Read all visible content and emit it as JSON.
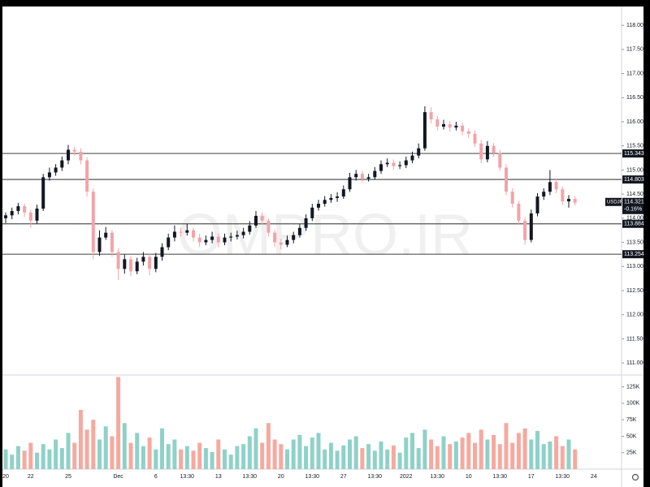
{
  "chart_data": {
    "type": "candlestick",
    "symbol": "USDJPY",
    "watermark": "OMPRO.IR",
    "last_price": 114.321,
    "change": {
      "value": -0.16,
      "label": "-0.16%"
    },
    "up_color": "#131722",
    "down_color": "#f4a3a8",
    "volume_up_color": "#8fd1c8",
    "volume_down_color": "#f6a99f",
    "categories": [
      "20",
      null,
      null,
      null,
      "22",
      null,
      null,
      null,
      null,
      null,
      "25",
      null,
      null,
      null,
      null,
      null,
      null,
      null,
      "Dec",
      null,
      null,
      null,
      null,
      null,
      "6",
      null,
      null,
      null,
      null,
      "13:30",
      null,
      null,
      null,
      null,
      "13",
      null,
      null,
      null,
      null,
      "13:30",
      null,
      null,
      null,
      null,
      "20",
      null,
      null,
      null,
      null,
      "13:30",
      null,
      null,
      null,
      null,
      "27",
      null,
      null,
      null,
      null,
      "13:30",
      null,
      null,
      null,
      null,
      "2022",
      null,
      null,
      null,
      null,
      "13:30",
      null,
      null,
      null,
      null,
      "10",
      null,
      null,
      null,
      null,
      "13:30",
      null,
      null,
      null,
      null,
      "17",
      null,
      null,
      null,
      null,
      "13:30",
      null,
      null,
      null,
      null,
      "24"
    ],
    "ohlc": [
      [
        114.0,
        114.12,
        113.9,
        114.06
      ],
      [
        114.06,
        114.22,
        113.98,
        114.15
      ],
      [
        114.15,
        114.32,
        114.08,
        114.25
      ],
      [
        114.25,
        114.3,
        114.02,
        114.12
      ],
      [
        114.12,
        114.18,
        113.8,
        113.95
      ],
      [
        113.95,
        114.28,
        113.88,
        114.2
      ],
      [
        114.2,
        114.92,
        114.15,
        114.85
      ],
      [
        114.85,
        115.05,
        114.78,
        114.95
      ],
      [
        114.95,
        115.12,
        114.88,
        115.05
      ],
      [
        115.05,
        115.28,
        114.98,
        115.2
      ],
      [
        115.2,
        115.52,
        115.12,
        115.42
      ],
      [
        115.42,
        115.48,
        115.3,
        115.38
      ],
      [
        115.38,
        115.45,
        115.12,
        115.2
      ],
      [
        115.2,
        115.26,
        114.45,
        114.55
      ],
      [
        114.55,
        114.62,
        113.15,
        113.3
      ],
      [
        113.3,
        113.75,
        113.22,
        113.6
      ],
      [
        113.6,
        113.82,
        113.55,
        113.7
      ],
      [
        113.7,
        113.76,
        113.2,
        113.3
      ],
      [
        113.3,
        113.38,
        112.72,
        112.95
      ],
      [
        112.95,
        113.25,
        112.85,
        113.15
      ],
      [
        113.15,
        113.22,
        112.8,
        112.9
      ],
      [
        112.9,
        113.18,
        112.84,
        113.1
      ],
      [
        113.1,
        113.3,
        113.02,
        113.2
      ],
      [
        113.2,
        113.26,
        112.82,
        112.95
      ],
      [
        112.95,
        113.28,
        112.88,
        113.2
      ],
      [
        113.2,
        113.48,
        113.12,
        113.4
      ],
      [
        113.4,
        113.68,
        113.34,
        113.6
      ],
      [
        113.6,
        113.85,
        113.52,
        113.72
      ],
      [
        113.72,
        113.8,
        113.62,
        113.7
      ],
      [
        113.7,
        113.88,
        113.64,
        113.75
      ],
      [
        113.75,
        113.8,
        113.52,
        113.6
      ],
      [
        113.6,
        113.68,
        113.4,
        113.5
      ],
      [
        113.5,
        113.64,
        113.44,
        113.55
      ],
      [
        113.55,
        113.72,
        113.48,
        113.62
      ],
      [
        113.62,
        113.68,
        113.4,
        113.5
      ],
      [
        113.5,
        113.68,
        113.44,
        113.6
      ],
      [
        113.6,
        113.7,
        113.52,
        113.62
      ],
      [
        113.62,
        113.74,
        113.56,
        113.65
      ],
      [
        113.65,
        113.8,
        113.58,
        113.72
      ],
      [
        113.72,
        113.94,
        113.66,
        113.85
      ],
      [
        113.85,
        114.15,
        113.8,
        114.05
      ],
      [
        114.05,
        114.12,
        113.88,
        113.95
      ],
      [
        113.95,
        114.0,
        113.62,
        113.7
      ],
      [
        113.7,
        113.76,
        113.4,
        113.5
      ],
      [
        113.5,
        113.58,
        113.36,
        113.45
      ],
      [
        113.45,
        113.64,
        113.4,
        113.55
      ],
      [
        113.55,
        113.72,
        113.48,
        113.65
      ],
      [
        113.65,
        113.88,
        113.6,
        113.8
      ],
      [
        113.8,
        114.08,
        113.74,
        114.0
      ],
      [
        114.0,
        114.3,
        113.94,
        114.22
      ],
      [
        114.22,
        114.38,
        114.16,
        114.3
      ],
      [
        114.3,
        114.46,
        114.24,
        114.38
      ],
      [
        114.38,
        114.5,
        114.32,
        114.42
      ],
      [
        114.42,
        114.54,
        114.34,
        114.45
      ],
      [
        114.45,
        114.68,
        114.4,
        114.6
      ],
      [
        114.6,
        114.94,
        114.55,
        114.85
      ],
      [
        114.85,
        115.0,
        114.78,
        114.92
      ],
      [
        114.92,
        114.98,
        114.74,
        114.82
      ],
      [
        114.82,
        114.92,
        114.76,
        114.85
      ],
      [
        114.85,
        115.06,
        114.8,
        114.98
      ],
      [
        114.98,
        115.2,
        114.92,
        115.12
      ],
      [
        115.12,
        115.24,
        115.06,
        115.15
      ],
      [
        115.15,
        115.22,
        115.0,
        115.08
      ],
      [
        115.08,
        115.18,
        115.02,
        115.1
      ],
      [
        115.1,
        115.28,
        115.04,
        115.2
      ],
      [
        115.2,
        115.38,
        115.14,
        115.3
      ],
      [
        115.3,
        115.55,
        115.24,
        115.45
      ],
      [
        115.45,
        116.32,
        115.4,
        116.2
      ],
      [
        116.2,
        116.3,
        115.96,
        116.05
      ],
      [
        116.05,
        116.12,
        115.82,
        115.9
      ],
      [
        115.9,
        116.04,
        115.84,
        115.95
      ],
      [
        115.95,
        116.02,
        115.8,
        115.88
      ],
      [
        115.88,
        116.0,
        115.82,
        115.92
      ],
      [
        115.92,
        115.98,
        115.72,
        115.8
      ],
      [
        115.8,
        115.86,
        115.66,
        115.75
      ],
      [
        115.75,
        115.82,
        115.48,
        115.55
      ],
      [
        115.55,
        115.62,
        115.14,
        115.22
      ],
      [
        115.22,
        115.6,
        115.16,
        115.5
      ],
      [
        115.5,
        115.56,
        115.28,
        115.35
      ],
      [
        115.35,
        115.42,
        114.98,
        115.05
      ],
      [
        115.05,
        115.12,
        114.48,
        114.55
      ],
      [
        114.55,
        114.62,
        114.22,
        114.3
      ],
      [
        114.3,
        114.36,
        113.86,
        113.95
      ],
      [
        113.95,
        114.02,
        113.45,
        113.55
      ],
      [
        113.55,
        114.18,
        113.5,
        114.1
      ],
      [
        114.1,
        114.52,
        114.04,
        114.45
      ],
      [
        114.45,
        114.62,
        114.38,
        114.55
      ],
      [
        114.55,
        115.0,
        114.48,
        114.75
      ],
      [
        114.75,
        114.82,
        114.52,
        114.6
      ],
      [
        114.6,
        114.66,
        114.28,
        114.35
      ],
      [
        114.35,
        114.48,
        114.22,
        114.4
      ],
      [
        114.4,
        114.46,
        114.26,
        114.321
      ],
      null,
      null,
      null
    ],
    "ylim": [
      110.75,
      118.39
    ],
    "yticks": [
      {
        "value": 111,
        "label": "111.000"
      },
      {
        "value": 111.5,
        "label": "111.500"
      },
      {
        "value": 112,
        "label": "112.000"
      },
      {
        "value": 112.5,
        "label": "112.500"
      },
      {
        "value": 113,
        "label": "113.000"
      },
      {
        "value": 113.5,
        "label": "113.500"
      },
      {
        "value": 114,
        "label": "114.000"
      },
      {
        "value": 114.5,
        "label": "114.500"
      },
      {
        "value": 115,
        "label": "115.000"
      },
      {
        "value": 115.5,
        "label": "115.500"
      },
      {
        "value": 116,
        "label": "116.000"
      },
      {
        "value": 116.5,
        "label": "116.500"
      },
      {
        "value": 117,
        "label": "117.000"
      },
      {
        "value": 117.5,
        "label": "117.500"
      },
      {
        "value": 118,
        "label": "118.000"
      }
    ],
    "levels": [
      115.343,
      114.803,
      113.884,
      113.254
    ],
    "volume": {
      "values": [
        30000,
        22000,
        35000,
        28000,
        40000,
        25000,
        38000,
        30000,
        45000,
        32000,
        55000,
        40000,
        90000,
        60000,
        75000,
        45000,
        65000,
        50000,
        140000,
        70000,
        40000,
        55000,
        35000,
        48000,
        30000,
        62000,
        38000,
        45000,
        30000,
        35000,
        28000,
        40000,
        32000,
        26000,
        45000,
        30000,
        22000,
        35000,
        38000,
        50000,
        62000,
        40000,
        70000,
        45000,
        38000,
        30000,
        45000,
        52000,
        35000,
        48000,
        55000,
        30000,
        40000,
        28000,
        36000,
        45000,
        50000,
        32000,
        38000,
        28000,
        42000,
        30000,
        36000,
        25000,
        48000,
        55000,
        32000,
        60000,
        45000,
        35000,
        50000,
        38000,
        42000,
        48000,
        55000,
        40000,
        60000,
        45000,
        52000,
        38000,
        70000,
        40000,
        55000,
        62000,
        45000,
        58000,
        38000,
        42000,
        50000,
        35000,
        45000,
        30000,
        null,
        null,
        null
      ],
      "ylim": [
        0,
        143000
      ],
      "yticks": [
        {
          "value": 25000,
          "label": "25K"
        },
        {
          "value": 50000,
          "label": "50K"
        },
        {
          "value": 75000,
          "label": "75K"
        },
        {
          "value": 100000,
          "label": "100K"
        },
        {
          "value": 125000,
          "label": "125K"
        }
      ]
    }
  }
}
